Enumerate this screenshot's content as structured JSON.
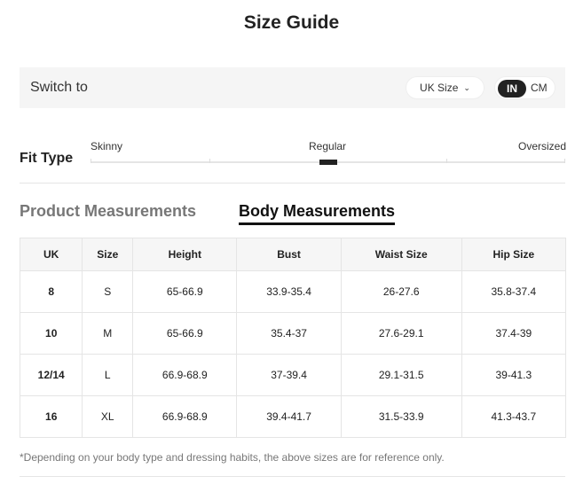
{
  "title": "Size Guide",
  "switch": {
    "label": "Switch to",
    "region": "UK Size",
    "units": [
      "IN",
      "CM"
    ],
    "active_unit": "IN"
  },
  "fit": {
    "label": "Fit Type",
    "options": [
      "Skinny",
      "Regular",
      "Oversized"
    ],
    "selected": "Regular"
  },
  "tabs": [
    {
      "label": "Product Measurements",
      "active": false
    },
    {
      "label": "Body Measurements",
      "active": true
    }
  ],
  "table": {
    "headers": [
      "UK",
      "Size",
      "Height",
      "Bust",
      "Waist Size",
      "Hip Size"
    ],
    "rows": [
      [
        "8",
        "S",
        "65-66.9",
        "33.9-35.4",
        "26-27.6",
        "35.8-37.4"
      ],
      [
        "10",
        "M",
        "65-66.9",
        "35.4-37",
        "27.6-29.1",
        "37.4-39"
      ],
      [
        "12/14",
        "L",
        "66.9-68.9",
        "37-39.4",
        "29.1-31.5",
        "39-41.3"
      ],
      [
        "16",
        "XL",
        "66.9-68.9",
        "39.4-41.7",
        "31.5-33.9",
        "41.3-43.7"
      ]
    ]
  },
  "note": "*Depending on your body type and dressing habits, the above sizes are for reference only."
}
